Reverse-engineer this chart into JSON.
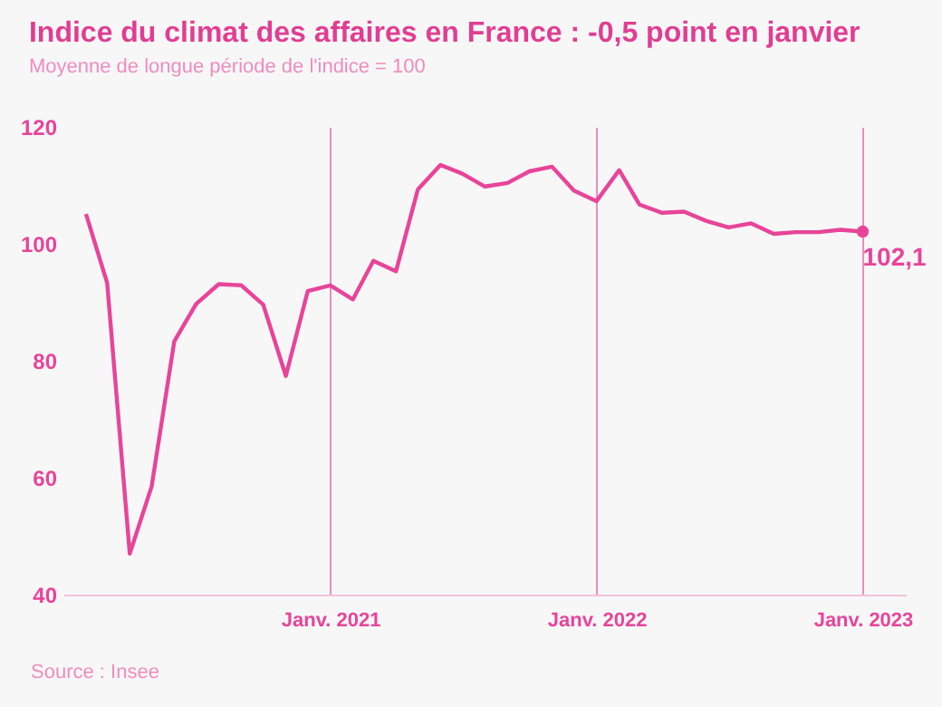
{
  "chart_data": {
    "type": "line",
    "title": "Indice du climat des affaires en France : -0,5 point en janvier",
    "subtitle": "Moyenne de longue période de l'indice = 100",
    "annotations": [
      {
        "text": "102,1",
        "x": "2023-01",
        "y": 102.1
      },
      "Source : Insee"
    ],
    "x": [
      "2020-02",
      "2020-03",
      "2020-04",
      "2020-05",
      "2020-06",
      "2020-07",
      "2020-08",
      "2020-09",
      "2020-10",
      "2020-11",
      "2020-12",
      "2021-01",
      "2021-02",
      "2021-03",
      "2021-04",
      "2021-05",
      "2021-06",
      "2021-07",
      "2021-08",
      "2021-09",
      "2021-10",
      "2021-11",
      "2021-12",
      "2022-01",
      "2022-02",
      "2022-03",
      "2022-04",
      "2022-05",
      "2022-06",
      "2022-07",
      "2022-08",
      "2022-09",
      "2022-10",
      "2022-11",
      "2022-12",
      "2023-01"
    ],
    "series": [
      {
        "color": "#e8449a",
        "values": [
          105.1,
          93.3,
          47.0,
          58.5,
          83.3,
          89.7,
          93.1,
          92.9,
          89.6,
          77.4,
          91.9,
          92.9,
          90.5,
          97.1,
          95.3,
          109.3,
          113.5,
          112.0,
          109.8,
          110.4,
          112.4,
          113.2,
          109.1,
          107.3,
          112.6,
          106.7,
          105.3,
          105.5,
          103.9,
          102.8,
          103.5,
          101.7,
          102.0,
          102.0,
          102.4,
          102.1
        ]
      }
    ],
    "xlim": [
      "2020-01",
      "2023-03"
    ],
    "xticks": [
      {
        "value": "2021-01",
        "label": "Janv. 2021"
      },
      {
        "value": "2022-01",
        "label": "Janv. 2022"
      },
      {
        "value": "2023-01",
        "label": "Janv. 2023"
      }
    ],
    "ylim": [
      40,
      120
    ],
    "yticks": [
      40,
      60,
      80,
      100,
      120
    ],
    "grid": "x",
    "legend": false,
    "marker": "none",
    "line_style": "solid"
  }
}
